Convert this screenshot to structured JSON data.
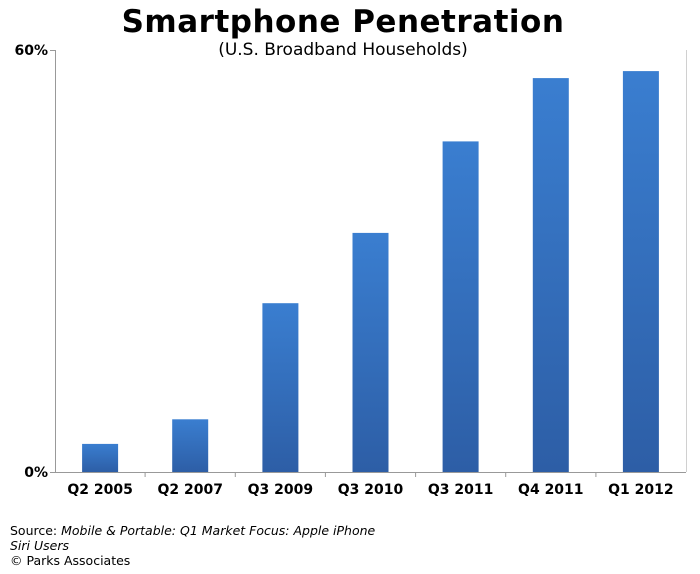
{
  "chart_data": {
    "type": "bar",
    "title": "Smartphone Penetration",
    "subtitle": "(U.S. Broadband Households)",
    "categories": [
      "Q2 2005",
      "Q2 2007",
      "Q3 2009",
      "Q3 2010",
      "Q3 2011",
      "Q4 2011",
      "Q1 2012"
    ],
    "values": [
      4,
      7.5,
      24,
      34,
      47,
      56,
      57
    ],
    "ylim": [
      0,
      60
    ],
    "yticks": [
      "0%",
      "60%"
    ],
    "grid": false,
    "bar_color": "#2f6fc0"
  },
  "footer": {
    "source_prefix": "Source: ",
    "source_title_line1": "Mobile & Portable: Q1 Market Focus: Apple iPhone",
    "source_title_line2": "Siri Users",
    "copyright": "© Parks Associates"
  }
}
